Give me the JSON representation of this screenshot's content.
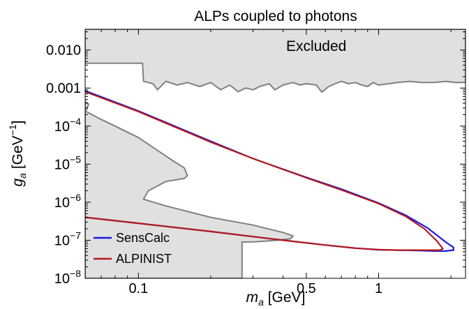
{
  "chart_data": {
    "type": "line",
    "title": "ALPs coupled to photons",
    "xlabel": {
      "var": "m",
      "sub": "a",
      "unit": " [GeV]"
    },
    "ylabel": {
      "var": "g",
      "sub": "a",
      "unit_pre": " [GeV",
      "unit_exp": "−1",
      "unit_post": "]"
    },
    "xscale": "log",
    "yscale": "log",
    "xlim": [
      0.06,
      2.3
    ],
    "ylim": [
      1e-08,
      0.035
    ],
    "grid": false,
    "x_ticks": [
      {
        "value": 0.1,
        "label": "0.1"
      },
      {
        "value": 0.5,
        "label": "0.5"
      },
      {
        "value": 1,
        "label": "1"
      }
    ],
    "x_minor_ticks": [
      0.06,
      0.07,
      0.08,
      0.09,
      0.2,
      0.3,
      0.4,
      0.6,
      0.7,
      0.8,
      0.9,
      2
    ],
    "y_ticks": [
      {
        "value": 1e-08,
        "base": "10",
        "exp": "−8"
      },
      {
        "value": 1e-07,
        "base": "10",
        "exp": "−7"
      },
      {
        "value": 1e-06,
        "base": "10",
        "exp": "−6"
      },
      {
        "value": 1e-05,
        "base": "10",
        "exp": "−5"
      },
      {
        "value": 0.0001,
        "base": "10",
        "exp": "−4"
      },
      {
        "value": 0.001,
        "plain": "0.001"
      },
      {
        "value": 0.01,
        "plain": "0.010"
      }
    ],
    "annotations": [
      {
        "text": "Excluded",
        "x": 0.55,
        "y": 0.0095
      }
    ],
    "legend": {
      "position": "bottom-left"
    },
    "excluded_regions": [
      {
        "name": "upper",
        "fill": "#e0e0e0",
        "stroke": "#808080",
        "points": [
          [
            0.06,
            0.035
          ],
          [
            2.3,
            0.035
          ],
          [
            2.3,
            0.0014
          ],
          [
            2.1,
            0.0014
          ],
          [
            1.9,
            0.0015
          ],
          [
            1.7,
            0.0014
          ],
          [
            1.5,
            0.0014
          ],
          [
            1.35,
            0.0015
          ],
          [
            1.2,
            0.0014
          ],
          [
            1.1,
            0.0013
          ],
          [
            1.0,
            0.0012
          ],
          [
            0.95,
            0.0014
          ],
          [
            0.9,
            0.0011
          ],
          [
            0.85,
            0.0012
          ],
          [
            0.8,
            0.0014
          ],
          [
            0.75,
            0.0013
          ],
          [
            0.7,
            0.0015
          ],
          [
            0.66,
            0.0013
          ],
          [
            0.62,
            0.0011
          ],
          [
            0.58,
            0.00078
          ],
          [
            0.55,
            0.0012
          ],
          [
            0.5,
            0.0013
          ],
          [
            0.47,
            0.0012
          ],
          [
            0.44,
            0.0014
          ],
          [
            0.4,
            0.0012
          ],
          [
            0.37,
            0.0009
          ],
          [
            0.35,
            0.0013
          ],
          [
            0.32,
            0.0011
          ],
          [
            0.3,
            0.0009
          ],
          [
            0.28,
            0.001
          ],
          [
            0.26,
            0.0008
          ],
          [
            0.24,
            0.0012
          ],
          [
            0.22,
            0.0009
          ],
          [
            0.2,
            0.0014
          ],
          [
            0.18,
            0.0011
          ],
          [
            0.16,
            0.0014
          ],
          [
            0.145,
            0.0012
          ],
          [
            0.13,
            0.0015
          ],
          [
            0.12,
            0.0009
          ],
          [
            0.115,
            0.0013
          ],
          [
            0.11,
            0.0014
          ],
          [
            0.105,
            0.0015
          ],
          [
            0.104,
            0.0045
          ],
          [
            0.06,
            0.0045
          ]
        ]
      },
      {
        "name": "lower",
        "fill": "#e0e0e0",
        "stroke": "#808080",
        "points": [
          [
            0.06,
            0.00025
          ],
          [
            0.07,
            0.00015
          ],
          [
            0.08,
            0.0001
          ],
          [
            0.1,
            5e-05
          ],
          [
            0.12,
            2.3e-05
          ],
          [
            0.14,
            1.2e-05
          ],
          [
            0.155,
            8e-06
          ],
          [
            0.16,
            5e-06
          ],
          [
            0.155,
            4.2e-06
          ],
          [
            0.13,
            3.5e-06
          ],
          [
            0.11,
            2e-06
          ],
          [
            0.105,
            1.2e-06
          ],
          [
            0.13,
            8e-07
          ],
          [
            0.2,
            4e-07
          ],
          [
            0.3,
            2.5e-07
          ],
          [
            0.4,
            1.6e-07
          ],
          [
            0.44,
            1.3e-07
          ],
          [
            0.43,
            1.1e-07
          ],
          [
            0.38,
            1e-07
          ],
          [
            0.3,
            9e-08
          ],
          [
            0.27,
            9e-08
          ],
          [
            0.27,
            1e-08
          ],
          [
            0.06,
            1e-08
          ]
        ]
      },
      {
        "name": "left-sliver",
        "fill": "#e0e0e0",
        "stroke": "#808080",
        "points": [
          [
            0.06,
            0.00045
          ],
          [
            0.062,
            0.00038
          ],
          [
            0.061,
            0.00028
          ],
          [
            0.06,
            0.00026
          ]
        ]
      }
    ],
    "series": [
      {
        "name": "SensCalc",
        "color": "#1a1ae6",
        "x": [
          0.06,
          0.1,
          0.2,
          0.3,
          0.5,
          0.7,
          1.0,
          1.3,
          1.6,
          1.9,
          2.05,
          2.05,
          1.9,
          1.7,
          1.4,
          1.2,
          1.0,
          0.8,
          0.6,
          0.4,
          0.2,
          0.1,
          0.06
        ],
        "y": [
          0.00085,
          0.00025,
          4e-05,
          1.4e-05,
          4.5e-06,
          2.2e-06,
          9.5e-07,
          4.5e-07,
          2.1e-07,
          9e-08,
          6.5e-08,
          5.5e-08,
          5.2e-08,
          5.2e-08,
          5.4e-08,
          5.5e-08,
          5.6e-08,
          6.2e-08,
          7.5e-08,
          1e-07,
          1.7e-07,
          2.8e-07,
          4e-07
        ]
      },
      {
        "name": "ALPINIST",
        "color": "#b31a1a",
        "x": [
          0.06,
          0.1,
          0.2,
          0.3,
          0.5,
          0.7,
          1.0,
          1.3,
          1.55,
          1.75,
          1.85,
          1.8,
          1.6,
          1.4,
          1.2,
          1.0,
          0.8,
          0.6,
          0.4,
          0.2,
          0.1,
          0.06
        ],
        "y": [
          0.0008,
          0.00024,
          3.8e-05,
          1.4e-05,
          4.4e-06,
          2.1e-06,
          9.2e-07,
          4.2e-07,
          2e-07,
          9.5e-08,
          6e-08,
          5.5e-08,
          5.5e-08,
          5.5e-08,
          5.5e-08,
          5.7e-08,
          6.2e-08,
          7.5e-08,
          1e-07,
          1.7e-07,
          2.8e-07,
          4e-07
        ]
      }
    ]
  }
}
